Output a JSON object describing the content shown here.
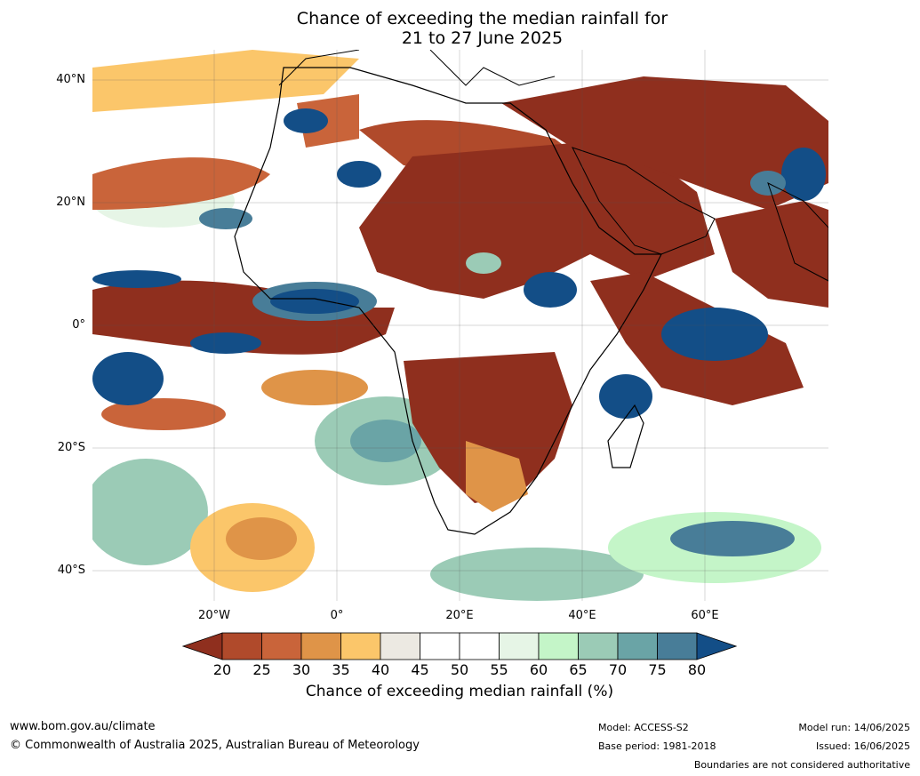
{
  "title_line1": "Chance of exceeding the median rainfall for",
  "title_line2": "21 to 27 June 2025",
  "lat_labels": [
    "40°N",
    "20°N",
    "0°",
    "20°S",
    "40°S"
  ],
  "lon_labels": [
    "20°W",
    "0°",
    "20°E",
    "40°E",
    "60°E"
  ],
  "colorbar": {
    "ticks": [
      "20",
      "25",
      "30",
      "35",
      "40",
      "45",
      "50",
      "55",
      "60",
      "65",
      "70",
      "75",
      "80"
    ],
    "colors": [
      "#8f2f1e",
      "#b04a2b",
      "#c9643a",
      "#df9448",
      "#fbc66a",
      "#ece9e2",
      "#ffffff",
      "#ffffff",
      "#e6f5e6",
      "#c4f5c8",
      "#9bcbb6",
      "#6aa4a6",
      "#487d98",
      "#134e87"
    ],
    "label": "Chance of exceeding median rainfall (%)"
  },
  "footer": {
    "website": "www.bom.gov.au/climate",
    "copyright": "© Commonwealth of Australia 2025, Australian Bureau of Meteorology",
    "model": "Model: ACCESS-S2",
    "base_period": "Base period: 1981-2018",
    "model_run": "Model run: 14/06/2025",
    "issued": "Issued: 16/06/2025",
    "disclaimer": "Boundaries are not considered authoritative"
  }
}
